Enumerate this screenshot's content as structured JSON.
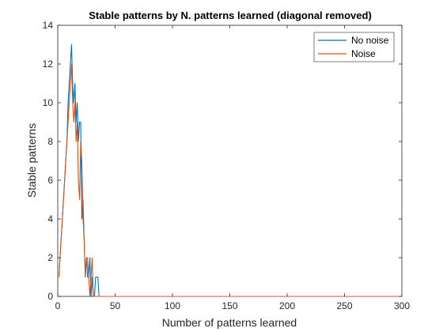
{
  "chart_data": {
    "type": "line",
    "title": "Stable patterns by N. patterns learned (diagonal removed)",
    "xlabel": "Number of patterns learned",
    "ylabel": "Stable patterns",
    "xlim": [
      0,
      300
    ],
    "ylim": [
      0,
      14
    ],
    "xticks": [
      0,
      50,
      100,
      150,
      200,
      250,
      300
    ],
    "yticks": [
      0,
      2,
      4,
      6,
      8,
      10,
      12,
      14
    ],
    "grid": false,
    "legend_position": "top-right",
    "series": [
      {
        "name": "No noise",
        "color": "#0072BD",
        "x": [
          1,
          2,
          3,
          4,
          5,
          6,
          7,
          8,
          9,
          10,
          11,
          12,
          13,
          14,
          15,
          16,
          17,
          18,
          19,
          20,
          21,
          22,
          23,
          24,
          25,
          26,
          27,
          28,
          29,
          30,
          31,
          32,
          33,
          34,
          35,
          36,
          37,
          38,
          40,
          50,
          100,
          150,
          200,
          250,
          300
        ],
        "y": [
          1,
          2,
          3,
          4,
          5,
          6,
          7,
          8,
          10,
          11,
          12,
          13,
          11,
          10,
          11,
          9,
          10,
          8,
          9,
          9,
          4,
          5,
          3,
          1,
          2,
          1,
          1,
          2,
          0,
          1,
          0,
          0,
          1,
          1,
          1,
          0,
          0,
          0,
          0,
          0,
          0,
          0,
          0,
          0,
          0
        ]
      },
      {
        "name": "Noise",
        "color": "#D95319",
        "x": [
          1,
          2,
          3,
          4,
          5,
          6,
          7,
          8,
          9,
          10,
          11,
          12,
          13,
          14,
          15,
          16,
          17,
          18,
          19,
          20,
          21,
          22,
          23,
          24,
          25,
          26,
          27,
          28,
          29,
          30,
          31,
          32,
          33,
          34,
          35,
          40,
          50,
          100,
          150,
          200,
          250,
          300
        ],
        "y": [
          1,
          2,
          3,
          4,
          5,
          6,
          7,
          8,
          9,
          10,
          11,
          12,
          10,
          9,
          10,
          8,
          9,
          6,
          5,
          8,
          7,
          4,
          3,
          1,
          2,
          2,
          1,
          0,
          1,
          2,
          0,
          0,
          0,
          0,
          0,
          0,
          0,
          0,
          0,
          0,
          0,
          0
        ]
      }
    ]
  }
}
